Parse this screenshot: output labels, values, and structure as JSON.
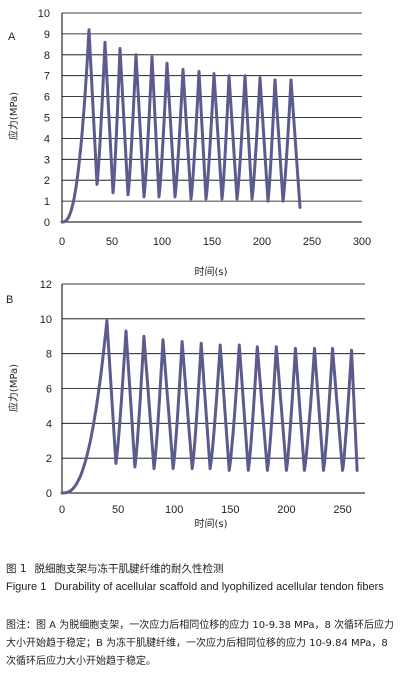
{
  "chart_data": [
    {
      "type": "line",
      "panel": "A",
      "xlabel": "时间(s)",
      "ylabel": "应力(MPa)",
      "xlim": [
        0,
        300
      ],
      "ylim": [
        0,
        10
      ],
      "xticks": [
        "0",
        "50",
        "100",
        "150",
        "200",
        "250",
        "300"
      ],
      "yticks": [
        "0",
        "1",
        "2",
        "3",
        "4",
        "5",
        "6",
        "7",
        "8",
        "9",
        "10"
      ],
      "grid": "horizontal",
      "line_color": "#5b5b8e",
      "series": [
        {
          "peaks": [
            {
              "t": 27,
              "stress": 9.2
            },
            {
              "t": 43,
              "stress": 8.6
            },
            {
              "t": 58,
              "stress": 8.3
            },
            {
              "t": 74,
              "stress": 8.0
            },
            {
              "t": 90,
              "stress": 7.9
            },
            {
              "t": 105,
              "stress": 7.6
            },
            {
              "t": 121,
              "stress": 7.3
            },
            {
              "t": 137,
              "stress": 7.2
            },
            {
              "t": 152,
              "stress": 7.1
            },
            {
              "t": 167,
              "stress": 7.0
            },
            {
              "t": 183,
              "stress": 7.0
            },
            {
              "t": 198,
              "stress": 6.9
            },
            {
              "t": 213,
              "stress": 6.8
            },
            {
              "t": 229,
              "stress": 6.8
            }
          ],
          "troughs": [
            {
              "t": 35,
              "stress": 1.8
            },
            {
              "t": 51,
              "stress": 1.4
            },
            {
              "t": 66,
              "stress": 1.3
            },
            {
              "t": 82,
              "stress": 1.2
            },
            {
              "t": 97,
              "stress": 1.2
            },
            {
              "t": 113,
              "stress": 1.2
            },
            {
              "t": 129,
              "stress": 1.1
            },
            {
              "t": 144,
              "stress": 1.1
            },
            {
              "t": 160,
              "stress": 1.1
            },
            {
              "t": 175,
              "stress": 1.1
            },
            {
              "t": 190,
              "stress": 1.1
            },
            {
              "t": 206,
              "stress": 1.0
            },
            {
              "t": 221,
              "stress": 1.0
            }
          ],
          "end": {
            "t": 238,
            "stress": 0.7
          }
        }
      ]
    },
    {
      "type": "line",
      "panel": "B",
      "xlabel": "时间(s)",
      "ylabel": "应力(MPa)",
      "xlim": [
        0,
        270
      ],
      "ylim": [
        0,
        12
      ],
      "xticks": [
        "0",
        "50",
        "100",
        "150",
        "200",
        "250"
      ],
      "yticks": [
        "0",
        "2",
        "4",
        "6",
        "8",
        "10",
        "12"
      ],
      "grid": "horizontal",
      "line_color": "#5b5b8e",
      "series": [
        {
          "peaks": [
            {
              "t": 40,
              "stress": 9.9
            },
            {
              "t": 57,
              "stress": 9.3
            },
            {
              "t": 73,
              "stress": 9.0
            },
            {
              "t": 90,
              "stress": 8.8
            },
            {
              "t": 107,
              "stress": 8.7
            },
            {
              "t": 124,
              "stress": 8.6
            },
            {
              "t": 141,
              "stress": 8.5
            },
            {
              "t": 158,
              "stress": 8.5
            },
            {
              "t": 174,
              "stress": 8.4
            },
            {
              "t": 191,
              "stress": 8.4
            },
            {
              "t": 208,
              "stress": 8.3
            },
            {
              "t": 225,
              "stress": 8.3
            },
            {
              "t": 241,
              "stress": 8.3
            },
            {
              "t": 258,
              "stress": 8.2
            }
          ],
          "troughs": [
            {
              "t": 48,
              "stress": 1.7
            },
            {
              "t": 65,
              "stress": 1.5
            },
            {
              "t": 82,
              "stress": 1.4
            },
            {
              "t": 99,
              "stress": 1.4
            },
            {
              "t": 116,
              "stress": 1.4
            },
            {
              "t": 132,
              "stress": 1.4
            },
            {
              "t": 149,
              "stress": 1.3
            },
            {
              "t": 166,
              "stress": 1.3
            },
            {
              "t": 183,
              "stress": 1.3
            },
            {
              "t": 200,
              "stress": 1.3
            },
            {
              "t": 216,
              "stress": 1.3
            },
            {
              "t": 233,
              "stress": 1.3
            },
            {
              "t": 250,
              "stress": 1.3
            }
          ],
          "end": {
            "t": 263,
            "stress": 1.3
          }
        }
      ]
    }
  ],
  "caption": {
    "label_cn": "图 1",
    "title_cn": "脱细胞支架与冻干肌腱纤维的耐久性检测",
    "label_en": "Figure 1",
    "title_en": "Durability of acellular scaffold and lyophilized acellular tendon fibers",
    "note": "图注：图 A 为脱细胞支架，一次应力后相同位移的应力 10-9.38 MPa，8 次循环后应力大小开始趋于稳定；B 为冻干肌腱纤维，一次应力后相同位移的应力 10-9.84 MPa，8 次循环后应力大小开始趋于稳定。"
  }
}
